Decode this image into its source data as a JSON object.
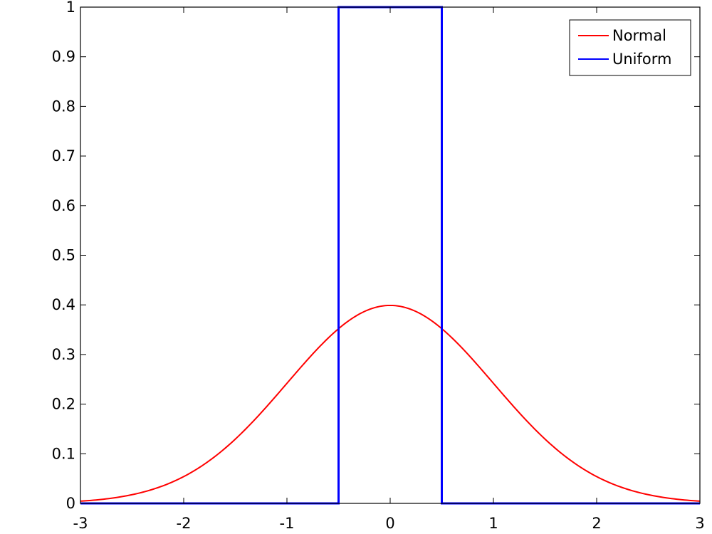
{
  "chart_data": {
    "type": "line",
    "title": "",
    "xlabel": "",
    "ylabel": "",
    "xlim": [
      -3,
      3
    ],
    "ylim": [
      0,
      1
    ],
    "grid": false,
    "legend_position": "top-right",
    "x_ticks": [
      -3,
      -2,
      -1,
      0,
      1,
      2,
      3
    ],
    "x_tick_labels": [
      "-3",
      "-2",
      "-1",
      "0",
      "1",
      "2",
      "3"
    ],
    "y_ticks": [
      0,
      0.1,
      0.2,
      0.3,
      0.4,
      0.5,
      0.6,
      0.7,
      0.8,
      0.9,
      1
    ],
    "y_tick_labels": [
      "0",
      "0.1",
      "0.2",
      "0.3",
      "0.4",
      "0.5",
      "0.6",
      "0.7",
      "0.8",
      "0.9",
      "1"
    ],
    "series": [
      {
        "name": "Normal",
        "color": "#ff0000",
        "x": [
          -3,
          -2.5,
          -2,
          -1.5,
          -1,
          -0.5,
          0,
          0.5,
          1,
          1.5,
          2,
          2.5,
          3
        ],
        "y": [
          0.0044,
          0.0175,
          0.054,
          0.1295,
          0.242,
          0.3521,
          0.3989,
          0.3521,
          0.242,
          0.1295,
          0.054,
          0.0175,
          0.0044
        ]
      },
      {
        "name": "Uniform",
        "color": "#0000ff",
        "x": [
          -3,
          -0.5,
          -0.5,
          0.5,
          0.5,
          3
        ],
        "y": [
          0,
          0,
          1,
          1,
          0,
          0
        ]
      }
    ]
  }
}
